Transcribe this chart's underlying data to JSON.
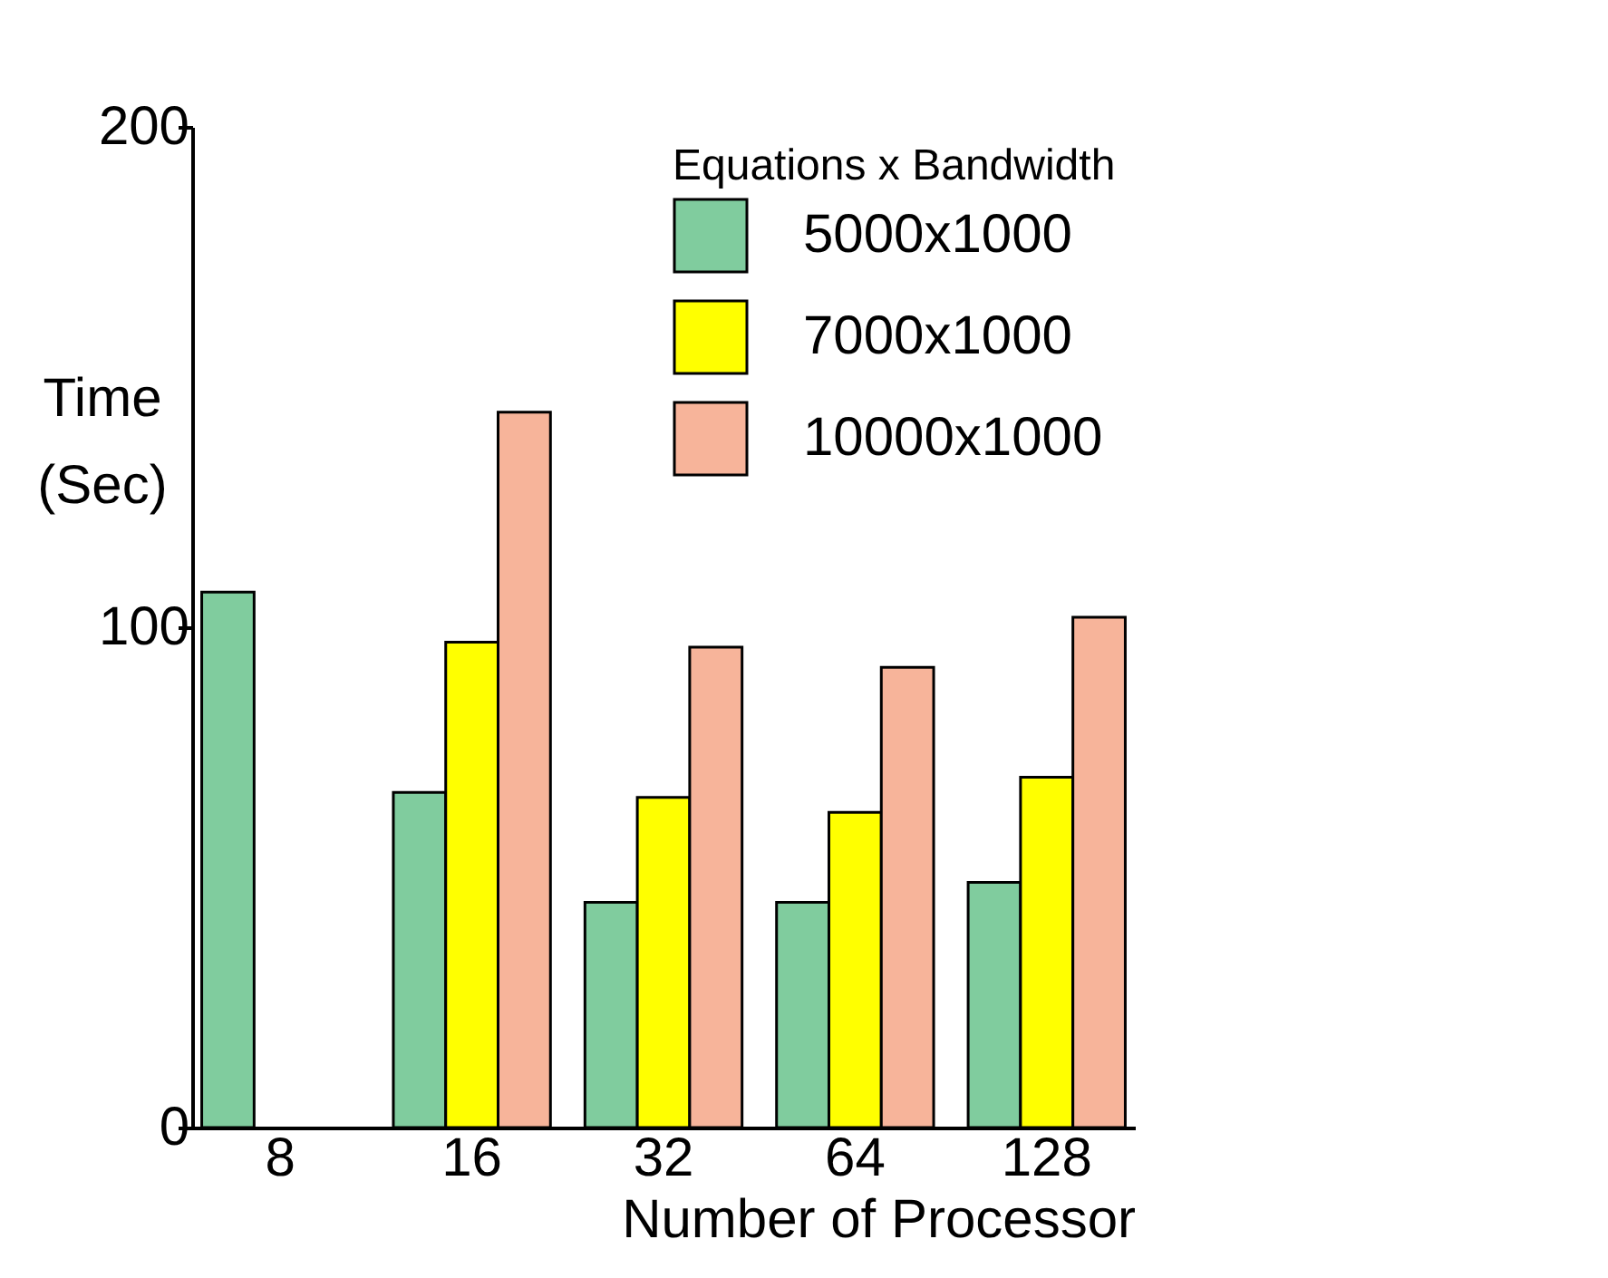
{
  "chart_data": {
    "type": "bar",
    "xlabel": "Number of Processor",
    "ylabel": "Time (Sec)",
    "legend_title": "Equations x Bandwidth",
    "legend": "top right",
    "grid": false,
    "categories": [
      "8",
      "16",
      "32",
      "64",
      "128"
    ],
    "ylim": [
      0,
      200
    ],
    "yticks": [
      0,
      100,
      200
    ],
    "series": [
      {
        "name": "5000x1000",
        "color": "#80cc9e",
        "values": [
          107,
          67,
          45,
          45,
          49
        ]
      },
      {
        "name": "7000x1000",
        "color": "#ffff00",
        "values": [
          null,
          97,
          66,
          63,
          70
        ]
      },
      {
        "name": "10000x1000",
        "color": "#f7b49a",
        "values": [
          null,
          143,
          96,
          92,
          102
        ]
      }
    ]
  }
}
